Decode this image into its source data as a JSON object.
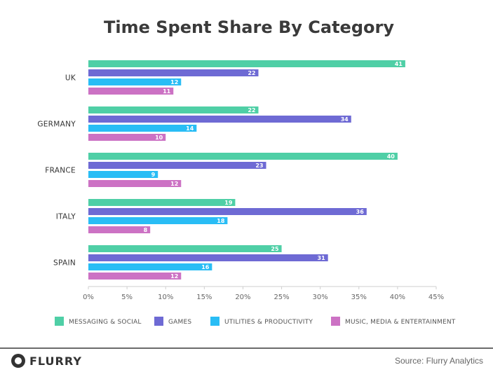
{
  "chart_data": {
    "type": "bar",
    "orientation": "horizontal",
    "title": "Time Spent Share By Category",
    "categories": [
      "UK",
      "GERMANY",
      "FRANCE",
      "ITALY",
      "SPAIN"
    ],
    "series": [
      {
        "name": "MESSAGING & SOCIAL",
        "color": "#4fcfa6",
        "values": [
          41,
          22,
          40,
          19,
          25
        ]
      },
      {
        "name": "GAMES",
        "color": "#6e6ad4",
        "values": [
          22,
          34,
          23,
          36,
          31
        ]
      },
      {
        "name": "UTILITIES & PRODUCTIVITY",
        "color": "#29bdf5",
        "values": [
          12,
          14,
          9,
          18,
          16
        ]
      },
      {
        "name": "MUSIC, MEDIA & ENTERTAINMENT",
        "color": "#cc72c4",
        "values": [
          11,
          10,
          12,
          8,
          12
        ]
      }
    ],
    "xticks": [
      "0%",
      "5%",
      "10%",
      "15%",
      "20%",
      "25%",
      "30%",
      "35%",
      "40%",
      "45%"
    ],
    "xlim": [
      0,
      45
    ],
    "grid": false,
    "legend_position": "bottom"
  },
  "footer": {
    "brand": "FLURRY",
    "source": "Source: Flurry Analytics"
  }
}
